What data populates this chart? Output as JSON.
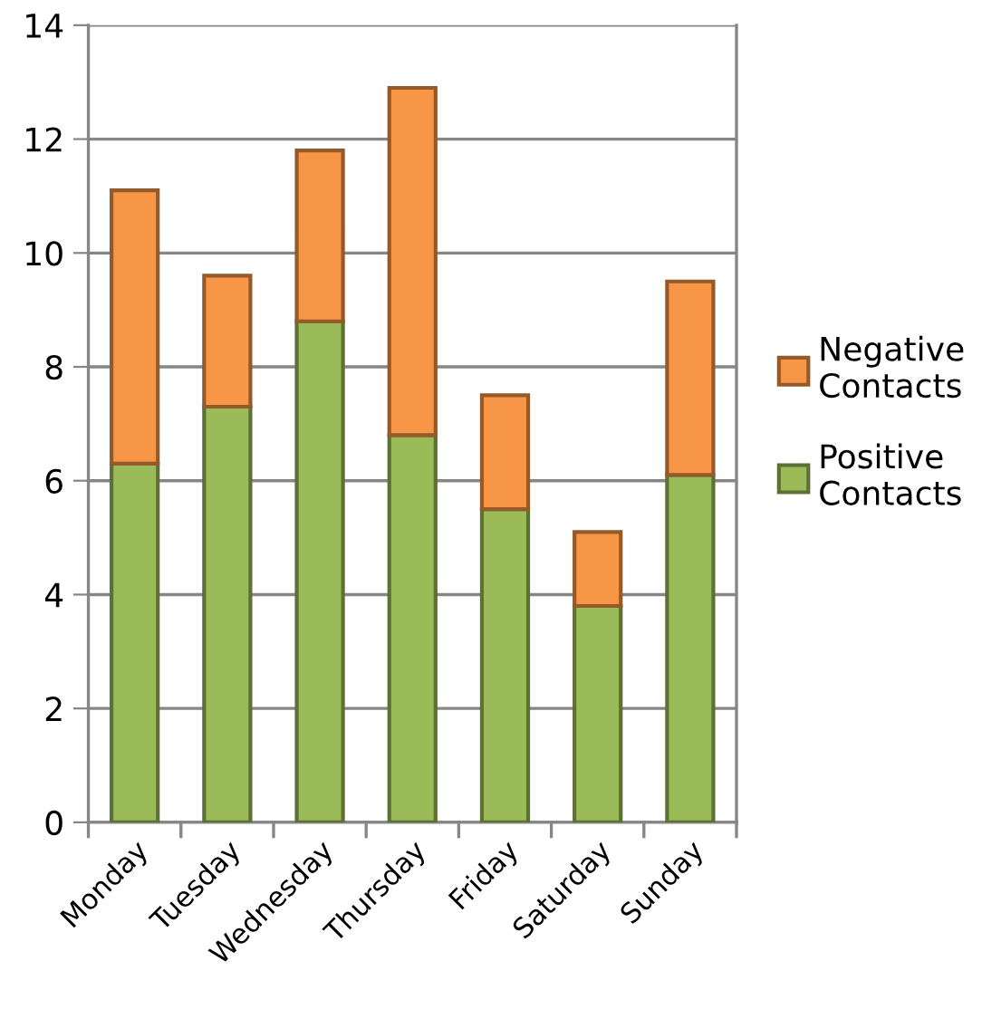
{
  "chart_data": {
    "type": "bar",
    "stacked": true,
    "categories": [
      "Monday",
      "Tuesday",
      "Wednesday",
      "Thursday",
      "Friday",
      "Saturday",
      "Sunday"
    ],
    "series": [
      {
        "name": "Positive\nContacts",
        "color": "#9bbb59",
        "values": [
          6.3,
          7.3,
          8.8,
          6.8,
          5.5,
          3.8,
          6.1
        ]
      },
      {
        "name": "Negative\nContacts",
        "color": "#f79646",
        "values": [
          4.8,
          2.3,
          3.0,
          6.1,
          2.0,
          1.3,
          3.4
        ]
      }
    ],
    "ylim": [
      0,
      14
    ],
    "yticks": [
      0,
      2,
      4,
      6,
      8,
      10,
      12,
      14
    ],
    "grid": "y",
    "legend": "right"
  }
}
